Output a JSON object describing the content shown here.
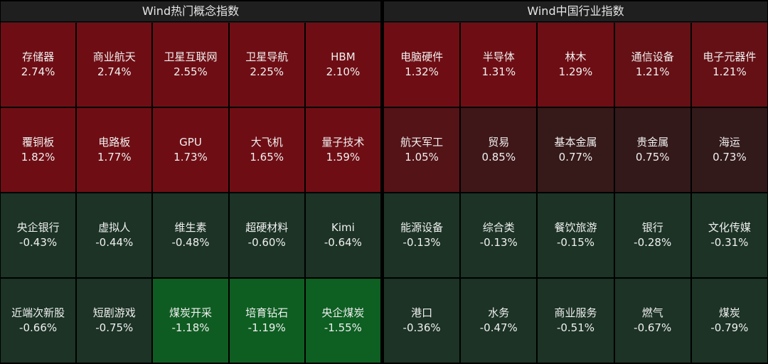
{
  "chart_data": [
    {
      "type": "heatmap",
      "title": "Wind热门概念指数",
      "rows": 4,
      "cols": 5,
      "cells": [
        {
          "name": "存储器",
          "value": 2.74,
          "label": "2.74%"
        },
        {
          "name": "商业航天",
          "value": 2.74,
          "label": "2.74%"
        },
        {
          "name": "卫星互联网",
          "value": 2.55,
          "label": "2.55%"
        },
        {
          "name": "卫星导航",
          "value": 2.25,
          "label": "2.25%"
        },
        {
          "name": "HBM",
          "value": 2.1,
          "label": "2.10%"
        },
        {
          "name": "覆铜板",
          "value": 1.82,
          "label": "1.82%"
        },
        {
          "name": "电路板",
          "value": 1.77,
          "label": "1.77%"
        },
        {
          "name": "GPU",
          "value": 1.73,
          "label": "1.73%"
        },
        {
          "name": "大飞机",
          "value": 1.65,
          "label": "1.65%"
        },
        {
          "name": "量子技术",
          "value": 1.59,
          "label": "1.59%"
        },
        {
          "name": "央企银行",
          "value": -0.43,
          "label": "-0.43%"
        },
        {
          "name": "虚拟人",
          "value": -0.44,
          "label": "-0.44%"
        },
        {
          "name": "维生素",
          "value": -0.48,
          "label": "-0.48%"
        },
        {
          "name": "超硬材料",
          "value": -0.6,
          "label": "-0.60%"
        },
        {
          "name": "Kimi",
          "value": -0.64,
          "label": "-0.64%"
        },
        {
          "name": "近端次新股",
          "value": -0.66,
          "label": "-0.66%"
        },
        {
          "name": "短剧游戏",
          "value": -0.75,
          "label": "-0.75%"
        },
        {
          "name": "煤炭开采",
          "value": -1.18,
          "label": "-1.18%"
        },
        {
          "name": "培育钻石",
          "value": -1.19,
          "label": "-1.19%"
        },
        {
          "name": "央企煤炭",
          "value": -1.55,
          "label": "-1.55%"
        }
      ]
    },
    {
      "type": "heatmap",
      "title": "Wind中国行业指数",
      "rows": 4,
      "cols": 5,
      "cells": [
        {
          "name": "电脑硬件",
          "value": 1.32,
          "label": "1.32%"
        },
        {
          "name": "半导体",
          "value": 1.31,
          "label": "1.31%"
        },
        {
          "name": "林木",
          "value": 1.29,
          "label": "1.29%"
        },
        {
          "name": "通信设备",
          "value": 1.21,
          "label": "1.21%"
        },
        {
          "name": "电子元器件",
          "value": 1.21,
          "label": "1.21%"
        },
        {
          "name": "航天军工",
          "value": 1.05,
          "label": "1.05%"
        },
        {
          "name": "贸易",
          "value": 0.85,
          "label": "0.85%"
        },
        {
          "name": "基本金属",
          "value": 0.77,
          "label": "0.77%"
        },
        {
          "name": "贵金属",
          "value": 0.75,
          "label": "0.75%"
        },
        {
          "name": "海运",
          "value": 0.73,
          "label": "0.73%"
        },
        {
          "name": "能源设备",
          "value": -0.13,
          "label": "-0.13%"
        },
        {
          "name": "综合类",
          "value": -0.13,
          "label": "-0.13%"
        },
        {
          "name": "餐饮旅游",
          "value": -0.15,
          "label": "-0.15%"
        },
        {
          "name": "银行",
          "value": -0.28,
          "label": "-0.28%"
        },
        {
          "name": "文化传媒",
          "value": -0.31,
          "label": "-0.31%"
        },
        {
          "name": "港口",
          "value": -0.36,
          "label": "-0.36%"
        },
        {
          "name": "水务",
          "value": -0.47,
          "label": "-0.47%"
        },
        {
          "name": "商业服务",
          "value": -0.51,
          "label": "-0.51%"
        },
        {
          "name": "燃气",
          "value": -0.67,
          "label": "-0.67%"
        },
        {
          "name": "煤炭",
          "value": -0.79,
          "label": "-0.79%"
        }
      ]
    }
  ],
  "colors": {
    "background": "#000000",
    "panel": "#1a1a1a",
    "text": "#f0f0f0",
    "up_strong": "#6e0e14",
    "up_weak": "#2f1a1a",
    "down_weak": "#1c3326",
    "down_strong": "#0e5f22"
  }
}
